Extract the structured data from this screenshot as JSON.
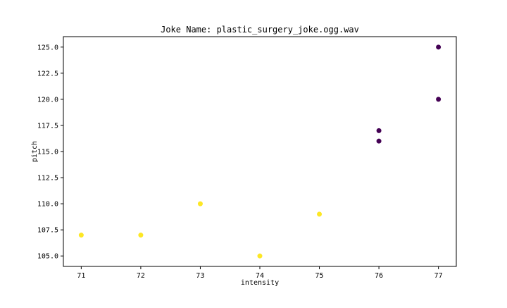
{
  "chart_data": {
    "type": "scatter",
    "title": "Joke Name: plastic_surgery_joke.ogg.wav",
    "xlabel": "intensity",
    "ylabel": "pitch",
    "xlim": [
      70.7,
      77.3
    ],
    "ylim": [
      104.0,
      126.0
    ],
    "xticks": [
      71,
      72,
      73,
      74,
      75,
      76,
      77
    ],
    "xtick_labels": [
      "71",
      "72",
      "73",
      "74",
      "75",
      "76",
      "77"
    ],
    "yticks": [
      105.0,
      107.5,
      110.0,
      112.5,
      115.0,
      117.5,
      120.0,
      122.5,
      125.0
    ],
    "ytick_labels": [
      "105.0",
      "107.5",
      "110.0",
      "112.5",
      "115.0",
      "117.5",
      "120.0",
      "122.5",
      "125.0"
    ],
    "grid": false,
    "legend": false,
    "colors": {
      "group_a": "#fde725",
      "group_b": "#440154"
    },
    "points": [
      {
        "x": 71,
        "y": 107,
        "group": "group_a"
      },
      {
        "x": 72,
        "y": 107,
        "group": "group_a"
      },
      {
        "x": 73,
        "y": 110,
        "group": "group_a"
      },
      {
        "x": 74,
        "y": 105,
        "group": "group_a"
      },
      {
        "x": 75,
        "y": 109,
        "group": "group_a"
      },
      {
        "x": 76,
        "y": 117,
        "group": "group_b"
      },
      {
        "x": 76,
        "y": 116,
        "group": "group_b"
      },
      {
        "x": 77,
        "y": 125,
        "group": "group_b"
      },
      {
        "x": 77,
        "y": 120,
        "group": "group_b"
      }
    ]
  }
}
